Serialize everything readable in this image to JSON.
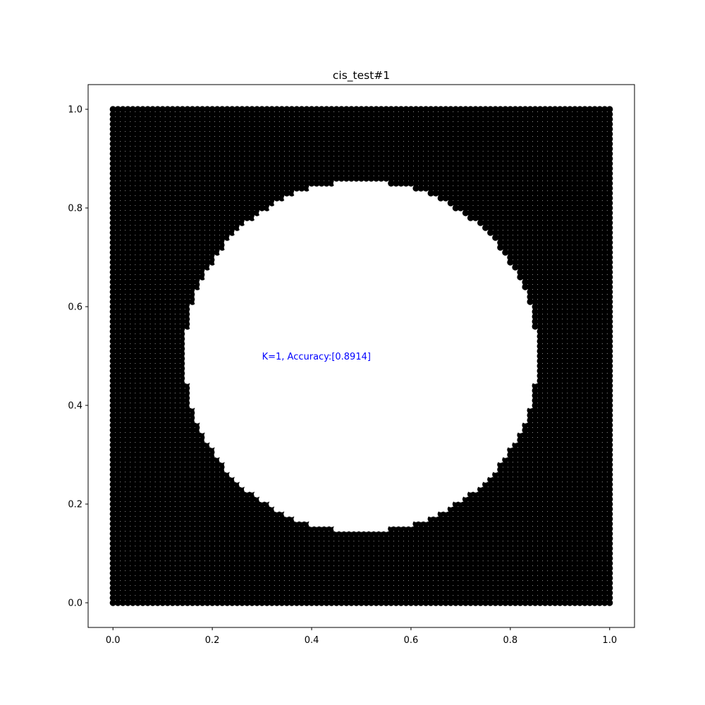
{
  "chart_data": {
    "type": "scatter",
    "title": "cis_test#1",
    "xlabel": "",
    "ylabel": "",
    "xlim": [
      -0.05,
      1.05
    ],
    "ylim": [
      -0.05,
      1.05
    ],
    "xticks": [
      "0.0",
      "0.2",
      "0.4",
      "0.6",
      "0.8",
      "1.0"
    ],
    "xtick_values": [
      0.0,
      0.2,
      0.4,
      0.6,
      0.8,
      1.0
    ],
    "yticks": [
      "0.0",
      "0.2",
      "0.4",
      "0.6",
      "0.8",
      "1.0"
    ],
    "ytick_values": [
      0.0,
      0.2,
      0.4,
      0.6,
      0.8,
      1.0
    ],
    "grid": false,
    "grid_points": {
      "x_range": [
        0.0,
        1.0
      ],
      "y_range": [
        0.0,
        1.0
      ],
      "step": 0.01
    },
    "classes": [
      {
        "label": 0,
        "color": "#000000",
        "region": "outside circle"
      },
      {
        "label": 1,
        "color": "#ffffff",
        "region": "inside circle"
      }
    ],
    "decision_circle": {
      "center": [
        0.5,
        0.5
      ],
      "radius": 0.355
    },
    "annotation": {
      "text": "K=1, Accuracy:[0.8914]",
      "x": 0.3,
      "y": 0.5,
      "color": "#0000ff"
    }
  }
}
